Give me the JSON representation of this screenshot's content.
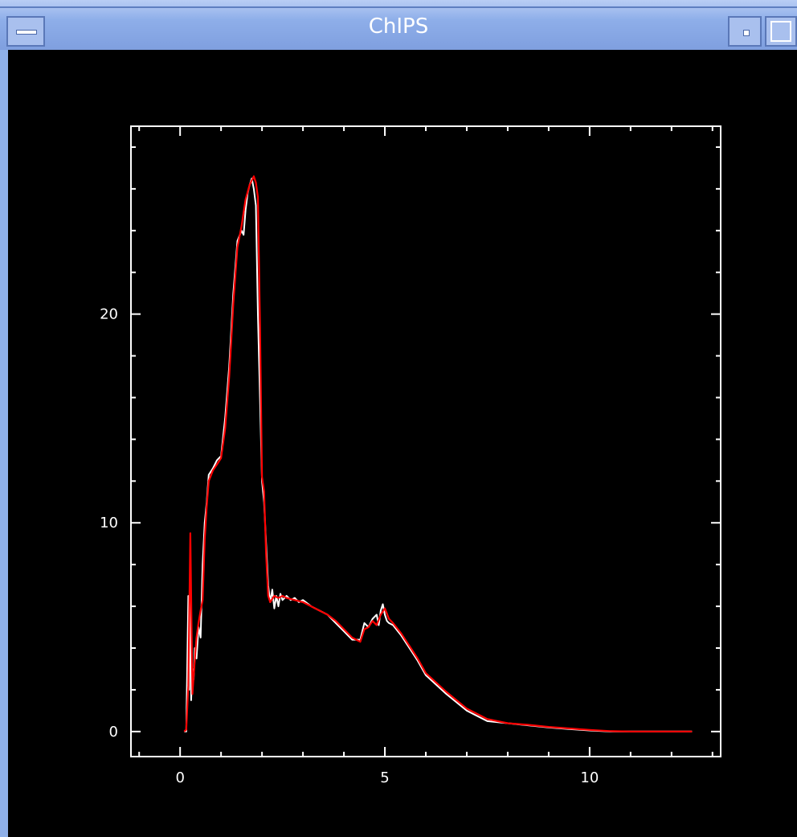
{
  "window": {
    "title": "ChIPS",
    "icons": {
      "menu": "window-menu-icon",
      "minimize": "minimize-icon",
      "maximize": "maximize-icon"
    }
  },
  "chart_data": {
    "type": "line",
    "title": "",
    "xlabel": "",
    "ylabel": "",
    "xlim": [
      -1.2,
      13.2
    ],
    "ylim": [
      -1.2,
      29.0
    ],
    "x_ticks": [
      0,
      5,
      10
    ],
    "y_ticks": [
      0,
      10,
      20
    ],
    "x_tick_labels": [
      "0",
      "5",
      "10"
    ],
    "y_tick_labels": [
      "0",
      "10",
      "20"
    ],
    "grid": false,
    "colors": {
      "background": "#000000",
      "axes": "#ffffff",
      "data": "#ffffff",
      "model": "#ff0000"
    },
    "series": [
      {
        "color": "#ffffff",
        "x": [
          0.1,
          0.15,
          0.2,
          0.22,
          0.25,
          0.27,
          0.3,
          0.33,
          0.36,
          0.4,
          0.45,
          0.5,
          0.55,
          0.6,
          0.65,
          0.7,
          0.8,
          0.9,
          1.0,
          1.1,
          1.2,
          1.3,
          1.4,
          1.5,
          1.55,
          1.6,
          1.65,
          1.7,
          1.75,
          1.8,
          1.85,
          1.9,
          1.95,
          2.0,
          2.05,
          2.1,
          2.15,
          2.2,
          2.25,
          2.3,
          2.35,
          2.4,
          2.45,
          2.5,
          2.6,
          2.7,
          2.8,
          2.9,
          3.0,
          3.2,
          3.4,
          3.6,
          3.8,
          4.0,
          4.2,
          4.4,
          4.5,
          4.6,
          4.7,
          4.8,
          4.85,
          4.9,
          4.95,
          5.0,
          5.05,
          5.1,
          5.2,
          5.4,
          5.6,
          5.8,
          6.0,
          6.5,
          7.0,
          7.5,
          8.0,
          8.5,
          9.0,
          9.5,
          10.0,
          10.5,
          11.0,
          11.5,
          12.0,
          12.5
        ],
        "y": [
          0.0,
          0.0,
          6.5,
          2.0,
          8.5,
          1.5,
          3.0,
          2.5,
          4.0,
          3.5,
          5.0,
          4.5,
          8.0,
          10.0,
          11.0,
          12.3,
          12.6,
          13.0,
          13.2,
          15.0,
          17.5,
          21.0,
          23.5,
          24.0,
          23.8,
          25.0,
          25.8,
          26.2,
          26.5,
          26.0,
          25.2,
          20.0,
          16.0,
          12.0,
          11.0,
          9.0,
          7.0,
          6.2,
          6.8,
          5.9,
          6.5,
          6.0,
          6.6,
          6.3,
          6.5,
          6.3,
          6.4,
          6.2,
          6.3,
          6.0,
          5.8,
          5.6,
          5.2,
          4.8,
          4.4,
          4.4,
          5.2,
          5.0,
          5.4,
          5.6,
          5.1,
          5.8,
          6.1,
          5.6,
          5.3,
          5.2,
          5.1,
          4.6,
          4.0,
          3.4,
          2.7,
          1.8,
          1.0,
          0.5,
          0.4,
          0.3,
          0.2,
          0.12,
          0.05,
          0.0,
          0.0,
          0.0,
          0.0,
          0.0
        ]
      },
      {
        "color": "#ff0000",
        "x": [
          0.1,
          0.15,
          0.2,
          0.25,
          0.3,
          0.35,
          0.4,
          0.45,
          0.5,
          0.55,
          0.6,
          0.65,
          0.7,
          0.8,
          0.9,
          1.0,
          1.1,
          1.2,
          1.3,
          1.4,
          1.5,
          1.6,
          1.7,
          1.8,
          1.85,
          1.9,
          1.95,
          2.0,
          2.05,
          2.1,
          2.15,
          2.2,
          2.3,
          2.4,
          2.5,
          2.6,
          2.8,
          3.0,
          3.2,
          3.4,
          3.6,
          3.8,
          4.0,
          4.2,
          4.4,
          4.5,
          4.6,
          4.7,
          4.8,
          4.9,
          5.0,
          5.1,
          5.2,
          5.4,
          5.6,
          5.8,
          6.0,
          6.5,
          7.0,
          7.5,
          8.0,
          8.5,
          9.0,
          9.5,
          10.0,
          10.5,
          11.0,
          11.5,
          12.0,
          12.5
        ],
        "y": [
          0.0,
          0.1,
          2.2,
          9.5,
          1.8,
          3.2,
          4.5,
          5.2,
          5.8,
          6.3,
          9.2,
          10.8,
          12.0,
          12.5,
          12.8,
          13.1,
          14.5,
          17.0,
          20.5,
          23.2,
          24.2,
          25.5,
          26.2,
          26.6,
          26.3,
          25.6,
          19.5,
          12.2,
          11.5,
          8.5,
          6.5,
          6.2,
          6.5,
          6.4,
          6.5,
          6.4,
          6.3,
          6.2,
          6.0,
          5.8,
          5.6,
          5.3,
          4.9,
          4.5,
          4.3,
          4.9,
          5.0,
          5.3,
          5.1,
          5.6,
          5.9,
          5.4,
          5.2,
          4.7,
          4.1,
          3.5,
          2.8,
          1.9,
          1.1,
          0.6,
          0.4,
          0.32,
          0.22,
          0.15,
          0.08,
          0.02,
          0.0,
          0.0,
          0.0,
          0.0
        ]
      }
    ]
  }
}
